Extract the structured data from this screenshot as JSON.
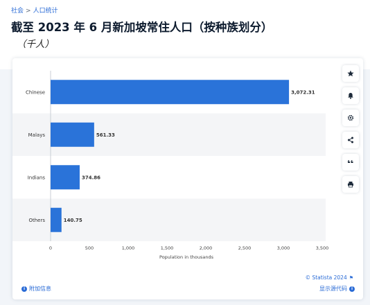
{
  "breadcrumb": {
    "items": [
      "社会",
      "人口统计"
    ],
    "separator": ">"
  },
  "title": "截至 2023 年 6 月新加坡常住人口（按种族划分）",
  "subtitle": "（千人）",
  "toolbar": {
    "icons": [
      "star-icon",
      "bell-icon",
      "gear-icon",
      "share-icon",
      "quote-icon",
      "print-icon"
    ]
  },
  "footer": {
    "credit": "© Statista 2024",
    "additional_info": "附加信息",
    "show_source": "显示源代码"
  },
  "colors": {
    "bar": "#2a73d9",
    "band": "#f4f5f7",
    "link": "#2a6bd6"
  },
  "chart_data": {
    "type": "bar",
    "orientation": "horizontal",
    "categories": [
      "Chinese",
      "Malays",
      "Indians",
      "Others"
    ],
    "values": [
      3072.31,
      561.33,
      374.86,
      140.75
    ],
    "value_labels": [
      "3,072.31",
      "561.33",
      "374.86",
      "140.75"
    ],
    "xlabel": "Population in thousands",
    "xlim": [
      0,
      3500
    ],
    "xticks": [
      0,
      500,
      1000,
      1500,
      2000,
      2500,
      3000,
      3500
    ],
    "xtick_labels": [
      "0",
      "500",
      "1,000",
      "1,500",
      "2,000",
      "2,500",
      "3,000",
      "3,500"
    ],
    "grid": false,
    "legend": "none"
  }
}
